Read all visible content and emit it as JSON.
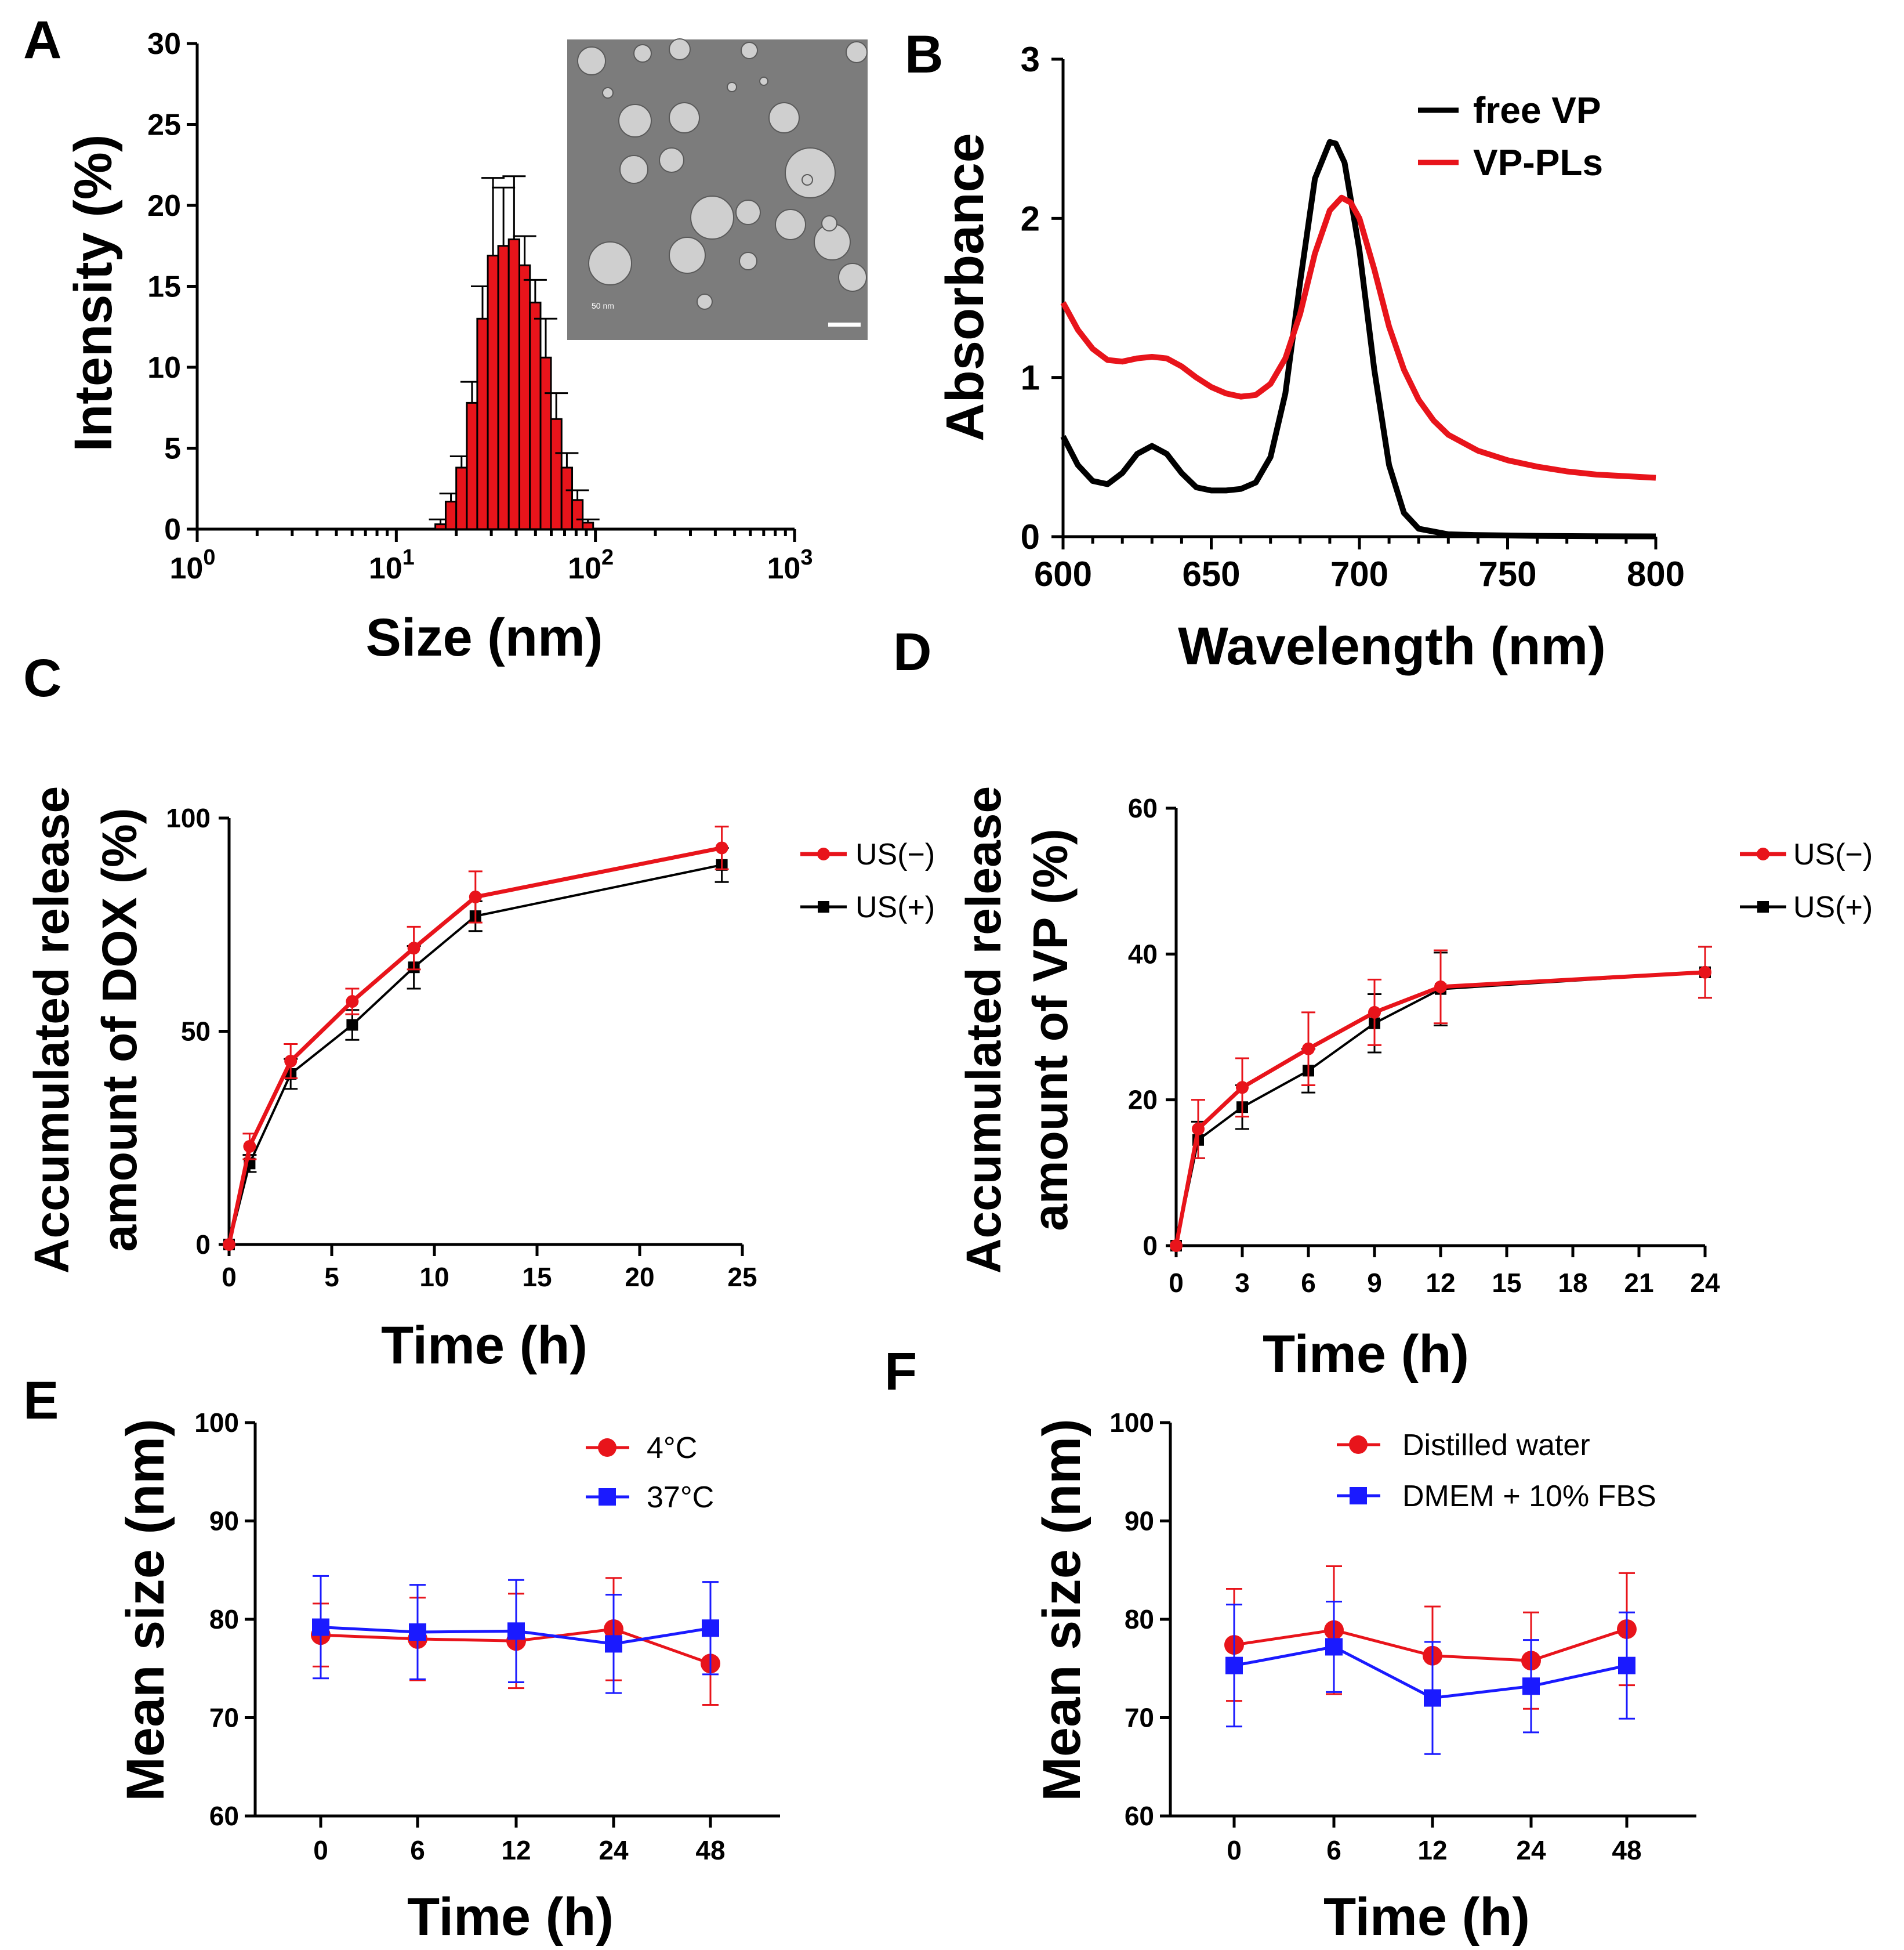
{
  "figure": {
    "panels": [
      "A",
      "B",
      "C",
      "D",
      "E",
      "F"
    ],
    "inset_scalebar_label": "50 nm"
  },
  "colors": {
    "red": "#e8141b",
    "black": "#000000",
    "blue": "#1a1aff",
    "bar_fill": "#e8141b"
  },
  "chart_data": [
    {
      "panel": "A",
      "type": "bar",
      "title": "",
      "xlabel": "Size (nm)",
      "ylabel": "Intensity (%)",
      "xscale": "log",
      "xlim": [
        1,
        1000
      ],
      "ylim": [
        0,
        30
      ],
      "yticks": [
        "0",
        "5",
        "10",
        "15",
        "20",
        "25",
        "30"
      ],
      "xticks": [
        {
          "base": "10",
          "exp": "0"
        },
        {
          "base": "10",
          "exp": "1"
        },
        {
          "base": "10",
          "exp": "2"
        },
        {
          "base": "10",
          "exp": "3"
        }
      ],
      "bin_edges": [
        15.7,
        17.7,
        20,
        22.6,
        25.5,
        28.8,
        32.5,
        36.7,
        41.5,
        46.9,
        53,
        59.8,
        67.6,
        76.4,
        86.3,
        97.4
      ],
      "values": [
        0.3,
        1.7,
        3.8,
        7.8,
        13,
        16.9,
        17.5,
        17.9,
        16.3,
        14,
        10.6,
        6.8,
        3.8,
        1.8,
        0.4
      ],
      "errors": [
        0.3,
        0.5,
        0.7,
        1.3,
        2,
        4.8,
        3.6,
        3.9,
        1.8,
        1.4,
        2.4,
        1.6,
        0.9,
        0.6,
        0.2
      ]
    },
    {
      "panel": "B",
      "type": "line",
      "title": "",
      "xlabel": "Wavelength (nm)",
      "ylabel": "Absorbance",
      "xlim": [
        600,
        800
      ],
      "ylim": [
        0,
        3
      ],
      "xticks": [
        "600",
        "650",
        "700",
        "750",
        "800"
      ],
      "yticks": [
        "0",
        "1",
        "2",
        "3"
      ],
      "legend_position": "top-right",
      "series": [
        {
          "name": "free VP",
          "color": "#000000",
          "x": [
            600,
            605,
            610,
            615,
            620,
            625,
            630,
            635,
            640,
            645,
            650,
            655,
            660,
            665,
            670,
            675,
            680,
            685,
            690,
            692,
            695,
            700,
            705,
            710,
            715,
            720,
            730,
            740,
            760,
            780,
            800
          ],
          "y": [
            0.63,
            0.45,
            0.35,
            0.33,
            0.4,
            0.52,
            0.57,
            0.52,
            0.4,
            0.31,
            0.29,
            0.29,
            0.3,
            0.34,
            0.5,
            0.9,
            1.6,
            2.25,
            2.48,
            2.47,
            2.35,
            1.8,
            1.05,
            0.45,
            0.15,
            0.05,
            0.015,
            0.01,
            0.005,
            0.003,
            0.002
          ]
        },
        {
          "name": "VP-PLs",
          "color": "#e8141b",
          "x": [
            600,
            605,
            610,
            615,
            620,
            625,
            630,
            635,
            640,
            645,
            650,
            655,
            660,
            665,
            670,
            675,
            680,
            685,
            690,
            694,
            697,
            700,
            705,
            710,
            715,
            720,
            725,
            730,
            740,
            750,
            760,
            770,
            780,
            790,
            800
          ],
          "y": [
            1.47,
            1.3,
            1.18,
            1.11,
            1.1,
            1.12,
            1.13,
            1.12,
            1.07,
            1.0,
            0.94,
            0.9,
            0.88,
            0.89,
            0.96,
            1.12,
            1.4,
            1.78,
            2.05,
            2.13,
            2.1,
            2.0,
            1.68,
            1.32,
            1.05,
            0.86,
            0.73,
            0.64,
            0.54,
            0.48,
            0.44,
            0.41,
            0.39,
            0.38,
            0.37
          ]
        }
      ]
    },
    {
      "panel": "C",
      "type": "line",
      "title": "",
      "xlabel": "Time (h)",
      "ylabel_line1": "Accumulated release",
      "ylabel_line2": "amount of DOX (%)",
      "xlim": [
        0,
        25
      ],
      "ylim": [
        0,
        100
      ],
      "xticks": [
        "0",
        "5",
        "10",
        "15",
        "20",
        "25"
      ],
      "yticks": [
        "0",
        "50",
        "100"
      ],
      "legend_position": "top-right",
      "series": [
        {
          "name": "US(−)",
          "color": "#e8141b",
          "marker": "circle",
          "x": [
            0,
            1,
            3,
            6,
            9,
            12,
            24
          ],
          "y": [
            0,
            23,
            43,
            57,
            69.5,
            81.5,
            93
          ],
          "err": [
            0,
            3,
            4,
            3,
            5,
            6,
            5
          ]
        },
        {
          "name": "US(+)",
          "color": "#000000",
          "marker": "square",
          "x": [
            0,
            1,
            3,
            6,
            9,
            12,
            24
          ],
          "y": [
            0,
            19,
            40,
            51.5,
            65,
            77,
            89
          ],
          "err": [
            0,
            2,
            3.5,
            3.5,
            5,
            3.5,
            4
          ]
        }
      ]
    },
    {
      "panel": "D",
      "type": "line",
      "title": "",
      "xlabel": "Time (h)",
      "ylabel_line1": "Accumulated release",
      "ylabel_line2": "amount of VP (%)",
      "xlim": [
        0,
        24
      ],
      "ylim": [
        0,
        60
      ],
      "xticks": [
        "0",
        "3",
        "6",
        "9",
        "12",
        "15",
        "18",
        "21",
        "24"
      ],
      "yticks": [
        "0",
        "20",
        "40",
        "60"
      ],
      "legend_position": "top-right",
      "series": [
        {
          "name": "US(−)",
          "color": "#e8141b",
          "marker": "circle",
          "x": [
            0,
            1,
            3,
            6,
            9,
            12,
            24
          ],
          "y": [
            0,
            16,
            21.7,
            27,
            32,
            35.5,
            37.5
          ],
          "err": [
            0,
            4,
            4,
            5,
            4.5,
            5,
            3.5
          ]
        },
        {
          "name": "US(+)",
          "color": "#000000",
          "marker": "square",
          "x": [
            0,
            1,
            3,
            6,
            9,
            12,
            24
          ],
          "y": [
            0,
            14.5,
            19,
            24,
            30.5,
            35.2,
            37.5
          ],
          "err": [
            0,
            2.5,
            3,
            3,
            4,
            5,
            3.5
          ]
        }
      ]
    },
    {
      "panel": "E",
      "type": "line",
      "title": "",
      "xlabel": "Time (h)",
      "ylabel": "Mean size (nm)",
      "categories": [
        "0",
        "6",
        "12",
        "24",
        "48"
      ],
      "ylim": [
        60,
        100
      ],
      "yticks": [
        "60",
        "70",
        "80",
        "90",
        "100"
      ],
      "legend_position": "top-right",
      "series": [
        {
          "name": "4°C",
          "color": "#e8141b",
          "marker": "circle",
          "values": [
            78.4,
            78.0,
            77.8,
            79.0,
            75.5
          ],
          "err": [
            3.2,
            4.2,
            4.8,
            5.2,
            4.2
          ]
        },
        {
          "name": "37°C",
          "color": "#1a1aff",
          "marker": "square",
          "values": [
            79.2,
            78.7,
            78.8,
            77.5,
            79.1
          ],
          "err": [
            5.2,
            4.8,
            5.2,
            5.0,
            4.7
          ]
        }
      ]
    },
    {
      "panel": "F",
      "type": "line",
      "title": "",
      "xlabel": "Time (h)",
      "ylabel": "Mean size (nm)",
      "categories": [
        "0",
        "6",
        "12",
        "24",
        "48"
      ],
      "ylim": [
        60,
        100
      ],
      "yticks": [
        "60",
        "70",
        "80",
        "90",
        "100"
      ],
      "legend_position": "top-right",
      "series": [
        {
          "name": "Distilled water",
          "color": "#e8141b",
          "marker": "circle",
          "values": [
            77.4,
            78.9,
            76.3,
            75.8,
            79.0
          ],
          "err": [
            5.7,
            6.5,
            5.0,
            4.9,
            5.7
          ]
        },
        {
          "name": "DMEM + 10% FBS",
          "color": "#1a1aff",
          "marker": "square",
          "values": [
            75.3,
            77.2,
            72.0,
            73.2,
            75.3
          ],
          "err": [
            6.2,
            4.6,
            5.7,
            4.7,
            5.4
          ]
        }
      ]
    }
  ]
}
